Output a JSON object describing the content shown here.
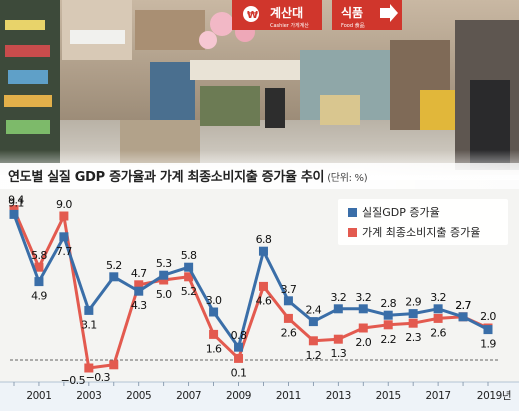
{
  "title": "연도별 실질 GDP 증가율과 가계 최종소비지출 증가율 추이",
  "unit": "(단위: %)",
  "photo_signs": {
    "checkout": "계산대",
    "checkout_sub": "Cashier 가게계산",
    "food": "식품",
    "food_sub": "Food 食品"
  },
  "colors": {
    "gdp": "#3a6ea8",
    "consumption": "#e35a4f"
  },
  "chart_data": {
    "type": "line",
    "title": "연도별 실질 GDP 증가율과 가계 최종소비지출 증가율 추이",
    "unit": "(단위: %)",
    "x": [
      2000,
      2001,
      2002,
      2003,
      2004,
      2005,
      2006,
      2007,
      2008,
      2009,
      2010,
      2011,
      2012,
      2013,
      2014,
      2015,
      2016,
      2017,
      2018,
      2019
    ],
    "x_tick_labels": [
      "2001",
      "2003",
      "2005",
      "2007",
      "2009",
      "2011",
      "2013",
      "2015",
      "2017",
      "2019년"
    ],
    "x_tick_years": [
      2001,
      2003,
      2005,
      2007,
      2009,
      2011,
      2013,
      2015,
      2017,
      2019
    ],
    "series": [
      {
        "name": "실질GDP 증가율",
        "color": "#3a6ea8",
        "values": [
          9.1,
          4.9,
          7.7,
          3.1,
          5.2,
          4.3,
          5.3,
          5.8,
          3.0,
          0.8,
          6.8,
          3.7,
          2.4,
          3.2,
          3.2,
          2.8,
          2.9,
          3.2,
          2.7,
          1.9
        ],
        "labels": [
          "9.1",
          "4.9",
          "7.7",
          "3.1",
          "5.2",
          "4.3",
          "5.3",
          "5.8",
          "3.0",
          "0.8",
          "6.8",
          "3.7",
          "2.4",
          "3.2",
          "3.2",
          "2.8",
          "2.9",
          "3.2",
          "2.7",
          "1.9"
        ]
      },
      {
        "name": "가계 최종소비지출 증가율",
        "color": "#e35a4f",
        "values": [
          9.4,
          5.8,
          9.0,
          -0.5,
          -0.3,
          4.7,
          5.0,
          5.2,
          1.6,
          0.1,
          4.6,
          2.6,
          1.2,
          1.3,
          2.0,
          2.2,
          2.3,
          2.6,
          2.7,
          2.0
        ],
        "labels": [
          "9.4",
          "5.8",
          "9.0",
          "−0.5",
          "−0.3",
          "4.7",
          "5.0",
          "5.2",
          "1.6",
          "0.1",
          "4.6",
          "2.6",
          "1.2",
          "1.3",
          "2.0",
          "2.2",
          "2.3",
          "2.6",
          "2.7",
          "2.0"
        ]
      }
    ],
    "legend": "top-right",
    "grid": false,
    "zero_line": "dashed"
  }
}
